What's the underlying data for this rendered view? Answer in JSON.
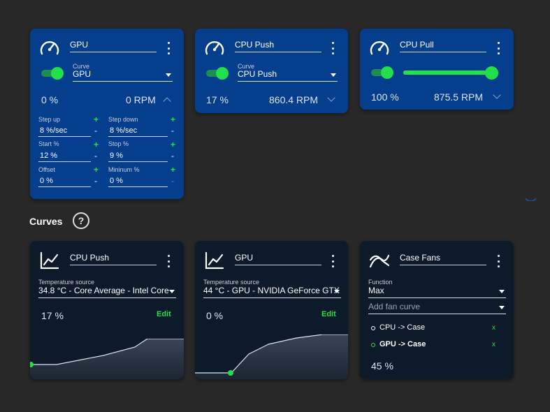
{
  "controls": [
    {
      "name": "GPU",
      "curve_label": "Curve",
      "curve_value": "GPU",
      "percent": "0 %",
      "rpm": "0 RPM",
      "params": {
        "step_up_label": "Step up",
        "step_up_value": "8 %/sec",
        "step_down_label": "Step down",
        "step_down_value": "8 %/sec",
        "start_label": "Start %",
        "start_value": "12 %",
        "stop_label": "Stop %",
        "stop_value": "9 %",
        "offset_label": "Offset",
        "offset_value": "0 %",
        "minimum_label": "Mininum %",
        "minimum_value": "0 %"
      }
    },
    {
      "name": "CPU Push",
      "curve_label": "Curve",
      "curve_value": "CPU Push",
      "percent": "17 %",
      "rpm": "860.4 RPM"
    },
    {
      "name": "CPU Pull",
      "percent": "100 %",
      "rpm": "875.5 RPM",
      "slider_level": 1.0
    }
  ],
  "curves_section": {
    "title": "Curves",
    "help": "?"
  },
  "curves": [
    {
      "name": "CPU Push",
      "temp_source_label": "Temperature source",
      "temp_source_value": "34.8 °C - Core Average - Intel Core",
      "percent": "17 %",
      "edit": "Edit"
    },
    {
      "name": "GPU",
      "temp_source_label": "Temperature source",
      "temp_source_value": "44 °C - GPU - NVIDIA GeForce GTX",
      "percent": "0 %",
      "edit": "Edit"
    },
    {
      "name": "Case Fans",
      "function_label": "Function",
      "function_value": "Max",
      "add_curve_placeholder": "Add fan curve",
      "members": [
        {
          "label": "CPU -> Case",
          "remove": "x"
        },
        {
          "label": "GPU -> Case",
          "remove": "x"
        }
      ],
      "percent": "45 %"
    }
  ],
  "colors": {
    "accent": "#22e04a",
    "control_card": "#053e8c",
    "curve_card": "#0c1a2a",
    "background": "#282828"
  },
  "icons": {
    "control": "speedometer-icon",
    "curve": "line-graph-icon",
    "mix": "mix-curve-icon",
    "menu": "more-vertical-icon"
  }
}
